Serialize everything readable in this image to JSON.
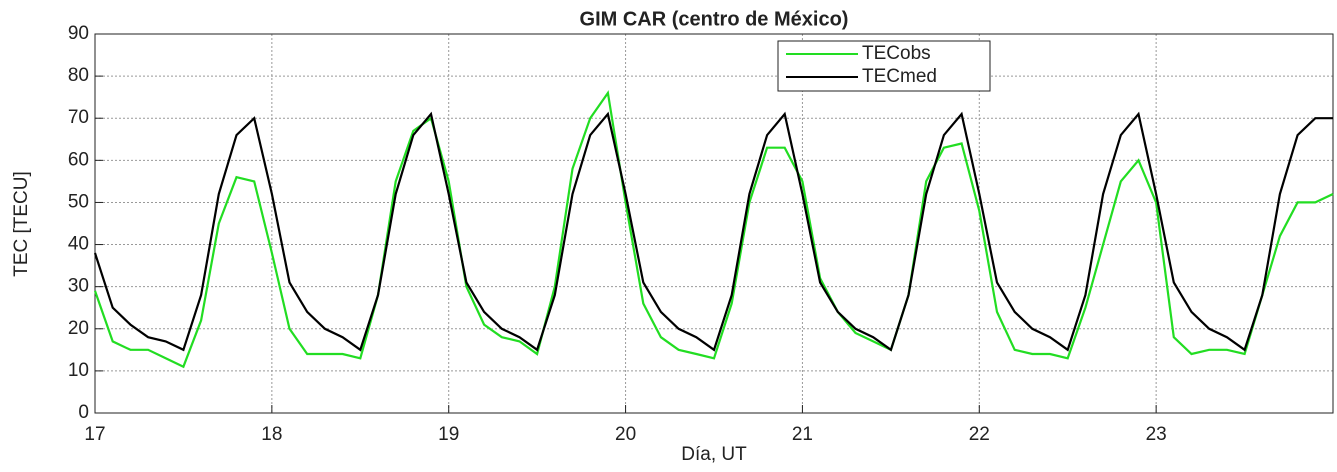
{
  "chart_data": {
    "type": "line",
    "title": "GIM CAR (centro de México)",
    "x_label": "Día, UT",
    "y_label": "TEC [TECU]",
    "x": [
      17.0,
      17.1,
      17.2,
      17.3,
      17.4,
      17.5,
      17.6,
      17.7,
      17.8,
      17.9,
      18.0,
      18.1,
      18.2,
      18.3,
      18.4,
      18.5,
      18.6,
      18.7,
      18.8,
      18.9,
      19.0,
      19.1,
      19.2,
      19.3,
      19.4,
      19.5,
      19.6,
      19.7,
      19.8,
      19.9,
      20.0,
      20.1,
      20.2,
      20.3,
      20.4,
      20.5,
      20.6,
      20.7,
      20.8,
      20.9,
      21.0,
      21.1,
      21.2,
      21.3,
      21.4,
      21.5,
      21.6,
      21.7,
      21.8,
      21.9,
      22.0,
      22.1,
      22.2,
      22.3,
      22.4,
      22.5,
      22.6,
      22.7,
      22.8,
      22.9,
      23.0,
      23.1,
      23.2,
      23.3,
      23.4,
      23.5,
      23.6,
      23.7,
      23.8,
      23.9,
      24.0
    ],
    "series": [
      {
        "name": "TECobs",
        "color": "#22dd22",
        "values": [
          29,
          17,
          15,
          15,
          13,
          11,
          22,
          45,
          56,
          55,
          38,
          20,
          14,
          14,
          14,
          13,
          28,
          55,
          67,
          70,
          55,
          30,
          21,
          18,
          17,
          14,
          30,
          58,
          70,
          76,
          50,
          26,
          18,
          15,
          14,
          13,
          26,
          50,
          63,
          63,
          55,
          32,
          24,
          19,
          17,
          15,
          28,
          55,
          63,
          64,
          48,
          24,
          15,
          14,
          14,
          13,
          25,
          40,
          55,
          60,
          50,
          18,
          14,
          15,
          15,
          14,
          28,
          42,
          50,
          50,
          52
        ]
      },
      {
        "name": "TECmed",
        "color": "#000000",
        "values": [
          38,
          25,
          21,
          18,
          17,
          15,
          28,
          52,
          66,
          70,
          52,
          31,
          24,
          20,
          18,
          15,
          28,
          52,
          66,
          71,
          52,
          31,
          24,
          20,
          18,
          15,
          28,
          52,
          66,
          71,
          52,
          31,
          24,
          20,
          18,
          15,
          28,
          52,
          66,
          71,
          52,
          31,
          24,
          20,
          18,
          15,
          28,
          52,
          66,
          71,
          52,
          31,
          24,
          20,
          18,
          15,
          28,
          52,
          66,
          71,
          52,
          31,
          24,
          20,
          18,
          15,
          28,
          52,
          66,
          70,
          70
        ]
      }
    ],
    "xlim": [
      17,
      24
    ],
    "xticks": [
      17,
      18,
      19,
      20,
      21,
      22,
      23
    ],
    "ylim": [
      0,
      90
    ],
    "yticks": [
      0,
      10,
      20,
      30,
      40,
      50,
      60,
      70,
      80,
      90
    ],
    "grid": true,
    "legend": "top-center"
  }
}
